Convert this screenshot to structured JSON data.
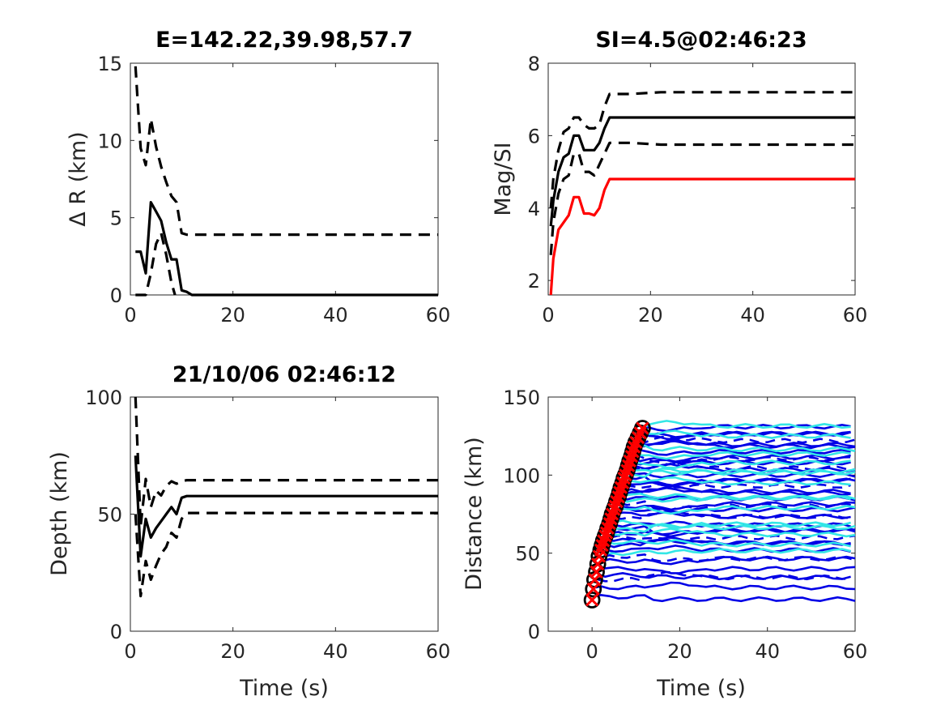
{
  "chart_data": [
    {
      "id": "p1",
      "type": "line",
      "title": "E=142.22,39.98,57.7",
      "xlabel": "",
      "ylabel": "Δ R (km)",
      "xlim": [
        0,
        60
      ],
      "ylim": [
        0,
        15
      ],
      "xticks": [
        0,
        20,
        40,
        60
      ],
      "yticks": [
        0,
        5,
        10,
        15
      ],
      "series": [
        {
          "color": "#000000",
          "dash": false,
          "x": [
            1,
            2,
            3,
            4,
            5,
            6,
            7,
            8,
            9,
            10,
            11,
            12,
            14,
            20,
            30,
            40,
            50,
            60
          ],
          "y": [
            2.8,
            2.8,
            1.4,
            6.0,
            5.4,
            4.8,
            3.4,
            2.3,
            2.3,
            0.3,
            0.2,
            0.0,
            0.0,
            0.0,
            0.0,
            0.0,
            0.0,
            0.0
          ]
        },
        {
          "color": "#000000",
          "dash": true,
          "x": [
            1,
            2,
            3,
            4,
            5,
            6,
            7,
            8,
            9,
            10,
            11,
            14,
            20,
            30,
            40,
            50,
            60
          ],
          "y": [
            14.8,
            9.5,
            8.4,
            11.4,
            9.6,
            8.3,
            7.3,
            6.4,
            6.0,
            4.0,
            3.9,
            3.9,
            3.9,
            3.9,
            3.9,
            3.9,
            3.9
          ]
        },
        {
          "color": "#000000",
          "dash": true,
          "x": [
            1,
            2,
            3,
            4,
            5,
            6,
            7,
            8,
            8.7
          ],
          "y": [
            0.0,
            0.0,
            0.0,
            1.4,
            3.3,
            4.0,
            2.6,
            0.8,
            0.0
          ]
        }
      ]
    },
    {
      "id": "p2",
      "type": "line",
      "title": "SI=4.5@02:46:23",
      "xlabel": "",
      "ylabel": "Mag/SI",
      "xlim": [
        0,
        60
      ],
      "ylim": [
        1.6,
        8
      ],
      "xticks": [
        0,
        20,
        40,
        60
      ],
      "yticks": [
        2,
        4,
        6,
        8
      ],
      "series": [
        {
          "color": "#ff0000",
          "dash": false,
          "x": [
            0.5,
            1,
            2,
            3,
            4,
            5,
            6,
            7,
            8,
            9,
            10,
            11,
            12,
            20,
            30,
            40,
            50,
            60
          ],
          "y": [
            1.6,
            2.6,
            3.4,
            3.6,
            3.8,
            4.3,
            4.3,
            3.85,
            3.85,
            3.8,
            4.0,
            4.5,
            4.8,
            4.8,
            4.8,
            4.8,
            4.8,
            4.8
          ]
        },
        {
          "color": "#000000",
          "dash": false,
          "x": [
            0.5,
            1,
            2,
            3,
            4,
            5,
            6,
            7,
            8,
            9,
            10,
            11,
            12,
            20,
            30,
            40,
            50,
            60
          ],
          "y": [
            3.5,
            4.2,
            5.0,
            5.4,
            5.5,
            6.0,
            6.0,
            5.6,
            5.6,
            5.6,
            5.8,
            6.2,
            6.5,
            6.5,
            6.5,
            6.5,
            6.5,
            6.5
          ]
        },
        {
          "color": "#000000",
          "dash": true,
          "x": [
            0.5,
            1,
            2,
            3,
            4,
            5,
            6,
            7,
            8,
            9,
            10,
            11,
            12,
            16,
            22,
            30,
            40,
            50,
            60
          ],
          "y": [
            4.0,
            4.8,
            5.6,
            6.1,
            6.2,
            6.5,
            6.5,
            6.3,
            6.2,
            6.2,
            6.3,
            6.8,
            7.15,
            7.15,
            7.2,
            7.2,
            7.2,
            7.2,
            7.2
          ]
        },
        {
          "color": "#000000",
          "dash": true,
          "x": [
            0.5,
            1,
            2,
            3,
            4,
            5,
            6,
            7,
            8,
            9,
            10,
            11,
            12,
            16,
            22,
            30,
            40,
            50,
            60
          ],
          "y": [
            2.7,
            3.6,
            4.4,
            4.8,
            4.9,
            5.5,
            5.5,
            5.0,
            5.0,
            4.9,
            5.2,
            5.5,
            5.8,
            5.8,
            5.75,
            5.75,
            5.75,
            5.75,
            5.75
          ]
        }
      ]
    },
    {
      "id": "p3",
      "type": "line",
      "title": "21/10/06 02:46:12",
      "xlabel": "Time (s)",
      "ylabel": "Depth (km)",
      "xlim": [
        0,
        60
      ],
      "ylim": [
        0,
        100
      ],
      "xticks": [
        0,
        20,
        40,
        60
      ],
      "yticks": [
        0,
        50,
        100
      ],
      "series": [
        {
          "color": "#000000",
          "dash": false,
          "x": [
            1,
            2,
            3,
            4,
            5,
            6,
            7,
            8,
            9,
            10,
            11,
            20,
            30,
            40,
            50,
            60
          ],
          "y": [
            75,
            32,
            48,
            40,
            44,
            47,
            50,
            53,
            50,
            57,
            57.7,
            57.7,
            57.7,
            57.7,
            57.7,
            57.7
          ]
        },
        {
          "color": "#000000",
          "dash": true,
          "x": [
            1,
            2,
            3,
            4,
            5,
            6,
            7,
            8,
            9,
            10,
            11,
            20,
            30,
            40,
            50,
            60
          ],
          "y": [
            100,
            45,
            65,
            53,
            60,
            58,
            62,
            64,
            63,
            64,
            64.5,
            64.5,
            64.5,
            64.5,
            64.5,
            64.5
          ]
        },
        {
          "color": "#000000",
          "dash": true,
          "x": [
            1,
            2,
            3,
            4,
            5,
            6,
            7,
            8,
            9,
            10,
            11,
            20,
            30,
            40,
            50,
            60
          ],
          "y": [
            50,
            15,
            30,
            22,
            28,
            33,
            36,
            42,
            40,
            48,
            50.5,
            50.5,
            50.5,
            50.5,
            50.5,
            50.5
          ]
        }
      ]
    },
    {
      "id": "p4",
      "type": "line",
      "title": "",
      "xlabel": "Time (s)",
      "ylabel": "Distance (km)",
      "xlim": [
        -10,
        60
      ],
      "ylim": [
        0,
        150
      ],
      "xticks": [
        0,
        20,
        40,
        60
      ],
      "yticks": [
        0,
        50,
        100,
        150
      ],
      "traces": {
        "blue_levels": [
          22,
          28,
          33,
          36,
          40,
          45,
          48,
          52,
          55,
          58,
          60,
          63,
          66,
          68,
          72,
          75,
          78,
          80,
          82,
          85,
          88,
          90,
          93,
          95,
          98,
          100,
          103,
          105,
          108,
          110,
          112,
          115,
          118,
          120,
          122,
          125,
          128,
          131
        ],
        "cyan_levels": [
          50,
          57,
          62,
          65,
          70,
          79,
          84,
          87,
          95,
          100,
          104,
          108,
          112,
          118,
          125,
          130
        ],
        "blue_color": "#0000e6",
        "cyan_color": "#33e6e6"
      },
      "picks": {
        "x": [
          0,
          0.3,
          0.6,
          1,
          1.3,
          1.6,
          2,
          2.3,
          2.6,
          3,
          3.3,
          3.6,
          4,
          4.3,
          4.6,
          5,
          5.3,
          5.6,
          6,
          6.3,
          6.6,
          7,
          7.3,
          7.6,
          8,
          8.3,
          8.6,
          9,
          9.3,
          9.6,
          10,
          10.5,
          11,
          11.5
        ],
        "y": [
          20,
          27,
          33,
          38,
          43,
          48,
          52,
          55,
          58,
          61,
          63,
          66,
          69,
          72,
          75,
          78,
          80,
          83,
          86,
          89,
          92,
          95,
          98,
          100,
          103,
          106,
          109,
          112,
          115,
          118,
          121,
          124,
          127,
          130
        ],
        "circle_color": "#000000",
        "cross_color": "#ff0000"
      }
    }
  ]
}
